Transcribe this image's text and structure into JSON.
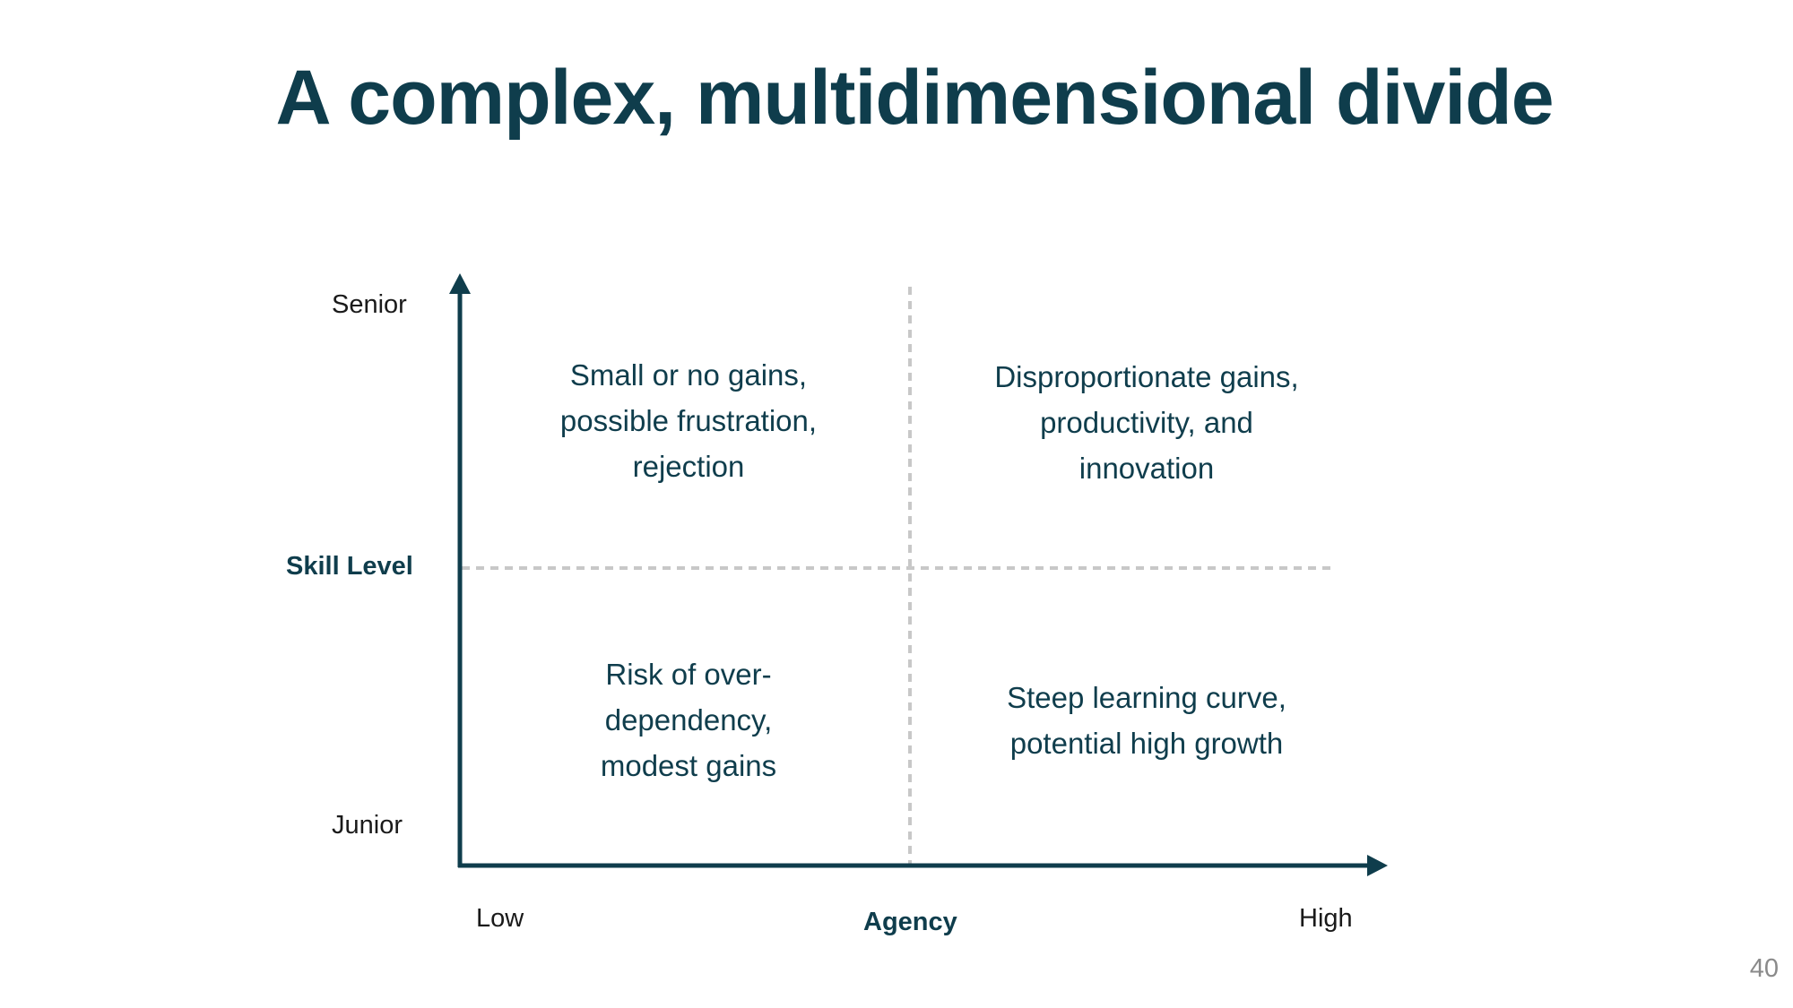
{
  "slide": {
    "title": "A complex, multidimensional divide",
    "page_number": "40"
  },
  "y_axis": {
    "name": "Skill Level",
    "top_label": "Senior",
    "bottom_label": "Junior"
  },
  "x_axis": {
    "name": "Agency",
    "left_label": "Low",
    "right_label": "High"
  },
  "quadrants": {
    "top_left": [
      "Small or no gains,",
      "possible frustration,",
      "rejection"
    ],
    "top_right": [
      "Disproportionate gains,",
      "productivity, and",
      "innovation"
    ],
    "bottom_left": [
      "Risk of over-",
      "dependency,",
      "modest gains"
    ],
    "bottom_right": [
      "Steep learning curve,",
      "potential high growth"
    ]
  },
  "colors": {
    "primary": "#0f3d4c",
    "divider": "#c8c8c8",
    "page_number": "#8a8a8a"
  }
}
